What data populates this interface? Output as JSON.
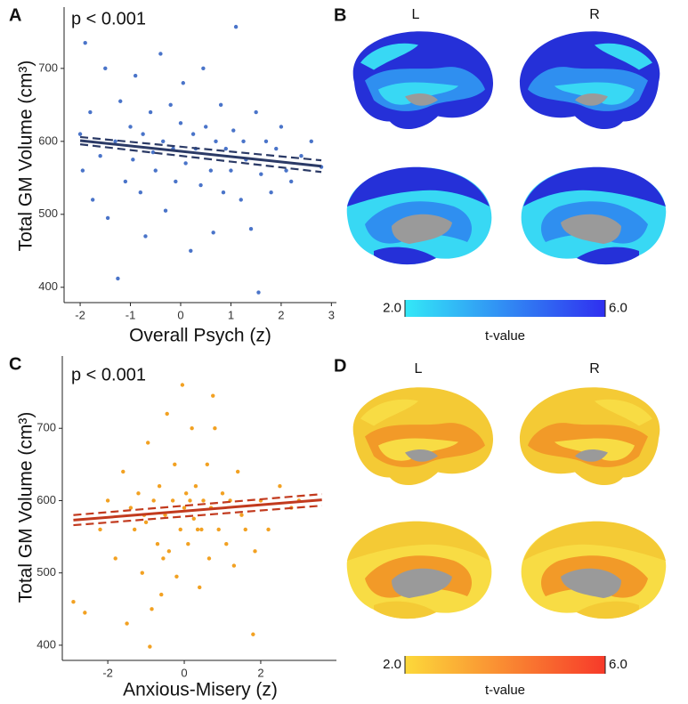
{
  "chart_data": [
    {
      "type": "scatter",
      "panel": "A",
      "annotation": "p < 0.001",
      "xlabel": "Overall Psych (z)",
      "ylabel": "Total GM Volume (cm³)",
      "x": [
        -2.0,
        -1.95,
        -1.9,
        -1.8,
        -1.75,
        -1.6,
        -1.5,
        -1.45,
        -1.3,
        -1.25,
        -1.2,
        -1.1,
        -1.0,
        -0.95,
        -0.9,
        -0.8,
        -0.75,
        -0.7,
        -0.6,
        -0.55,
        -0.5,
        -0.4,
        -0.35,
        -0.3,
        -0.2,
        -0.15,
        -0.1,
        0.0,
        0.05,
        0.1,
        0.2,
        0.25,
        0.3,
        0.4,
        0.45,
        0.5,
        0.6,
        0.65,
        0.7,
        0.8,
        0.85,
        0.9,
        1.0,
        1.05,
        1.1,
        1.2,
        1.25,
        1.3,
        1.4,
        1.5,
        1.55,
        1.6,
        1.7,
        1.8,
        1.9,
        2.0,
        2.1,
        2.2,
        2.4,
        2.6,
        2.8
      ],
      "y": [
        610,
        560,
        735,
        640,
        520,
        580,
        700,
        495,
        600,
        412,
        655,
        545,
        620,
        575,
        690,
        530,
        610,
        470,
        640,
        585,
        560,
        720,
        600,
        505,
        650,
        590,
        545,
        625,
        680,
        570,
        450,
        610,
        590,
        540,
        700,
        620,
        560,
        475,
        600,
        650,
        530,
        590,
        560,
        615,
        757,
        520,
        600,
        575,
        480,
        640,
        393,
        555,
        600,
        530,
        590,
        620,
        560,
        545,
        580,
        600,
        565
      ],
      "color": "#4a74c9",
      "fit": {
        "x": [
          -2,
          2.8
        ],
        "y": [
          601,
          566
        ],
        "lower": [
          596,
          558
        ],
        "upper": [
          606,
          574
        ],
        "color": "#2b3a66"
      },
      "xlim": [
        -2.32,
        3.1
      ],
      "ylim": [
        379,
        784
      ],
      "xticks": [
        -2,
        -1,
        0,
        1,
        2,
        3
      ],
      "yticks": [
        400,
        500,
        600,
        700
      ]
    },
    {
      "type": "brain-map",
      "panel": "B",
      "hemispheres": [
        "L",
        "R"
      ],
      "colorbar": {
        "colors": [
          "#33e8f7",
          "#2f2ff0"
        ],
        "lim": [
          2,
          6
        ],
        "ticks": [
          {
            "value": 2,
            "label": "2.0"
          },
          {
            "value": 6,
            "label": "6.0"
          }
        ],
        "label": "t-value"
      }
    },
    {
      "type": "scatter",
      "panel": "C",
      "annotation": "p < 0.001",
      "xlabel": "Anxious-Misery (z)",
      "ylabel": "Total GM Volume (cm³)",
      "x": [
        -2.9,
        -2.6,
        -2.2,
        -2.0,
        -1.8,
        -1.6,
        -1.5,
        -1.4,
        -1.3,
        -1.2,
        -1.1,
        -1.0,
        -0.95,
        -0.9,
        -0.8,
        -0.7,
        -0.65,
        -0.6,
        -0.5,
        -0.45,
        -0.4,
        -0.3,
        -0.25,
        -0.2,
        -0.1,
        -0.05,
        0.0,
        0.05,
        0.1,
        0.2,
        0.25,
        0.3,
        0.4,
        0.45,
        0.5,
        0.6,
        0.65,
        0.7,
        0.8,
        0.9,
        1.0,
        1.1,
        1.2,
        1.3,
        1.4,
        1.5,
        1.6,
        1.8,
        2.0,
        2.2,
        2.5,
        2.8,
        3.0,
        -1.05,
        -0.55,
        0.15,
        0.75,
        -0.85,
        0.35,
        1.85
      ],
      "y": [
        460,
        445,
        560,
        600,
        520,
        640,
        430,
        590,
        560,
        610,
        500,
        570,
        680,
        398,
        600,
        540,
        620,
        470,
        580,
        720,
        530,
        600,
        650,
        495,
        560,
        760,
        590,
        610,
        540,
        700,
        575,
        620,
        480,
        560,
        600,
        650,
        520,
        590,
        700,
        560,
        610,
        540,
        600,
        510,
        640,
        580,
        560,
        415,
        600,
        560,
        620,
        590,
        600,
        580,
        520,
        600,
        745,
        450,
        560,
        530
      ],
      "color": "#f2a122",
      "fit": {
        "x": [
          -2.9,
          3.6
        ],
        "y": [
          573,
          601
        ],
        "lower": [
          566,
          593
        ],
        "upper": [
          580,
          609
        ],
        "color": "#c23a1e"
      },
      "xlim": [
        -3.19,
        3.98
      ],
      "ylim": [
        379,
        800
      ],
      "xticks": [
        -2,
        0,
        2
      ],
      "yticks": [
        400,
        500,
        600,
        700
      ]
    },
    {
      "type": "brain-map",
      "panel": "D",
      "hemispheres": [
        "L",
        "R"
      ],
      "colorbar": {
        "colors": [
          "#fcd93a",
          "#f73a2a"
        ],
        "lim": [
          2,
          6
        ],
        "ticks": [
          {
            "value": 2,
            "label": "2.0"
          },
          {
            "value": 6,
            "label": "6.0"
          }
        ],
        "label": "t-value"
      }
    }
  ]
}
